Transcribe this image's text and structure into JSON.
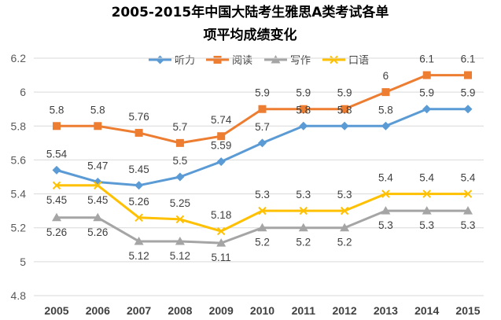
{
  "chart_data": {
    "type": "line",
    "title_lines": [
      "2005-2015年中国大陆考生雅思A类考试各单",
      "项平均成绩变化"
    ],
    "categories": [
      "2005",
      "2006",
      "2007",
      "2008",
      "2009",
      "2010",
      "2011",
      "2012",
      "2013",
      "2014",
      "2015"
    ],
    "ylim": [
      4.8,
      6.2
    ],
    "yticks": [
      "4.8",
      "5",
      "5.2",
      "5.4",
      "5.6",
      "5.8",
      "6",
      "6.2"
    ],
    "grid": true,
    "legend_position": "top",
    "series": [
      {
        "name": "听力",
        "color": "#5B9BD5",
        "marker": "diamond",
        "values": [
          5.54,
          5.47,
          5.45,
          5.5,
          5.59,
          5.7,
          5.8,
          5.8,
          5.8,
          5.9,
          5.9
        ],
        "labels": [
          "5.54",
          "5.47",
          "5.45",
          "5.5",
          "5.59",
          "5.7",
          "5.8",
          "5.8",
          "5.8",
          "5.9",
          "5.9"
        ],
        "label_side": [
          "above",
          "above",
          "above",
          "above",
          "above",
          "above",
          "above",
          "above",
          "above",
          "above",
          "above"
        ]
      },
      {
        "name": "阅读",
        "color": "#ED7D31",
        "marker": "square",
        "values": [
          5.8,
          5.8,
          5.76,
          5.7,
          5.74,
          5.9,
          5.9,
          5.9,
          6.0,
          6.1,
          6.1
        ],
        "labels": [
          "5.8",
          "5.8",
          "5.76",
          "5.7",
          "5.74",
          "5.9",
          "5.9",
          "5.9",
          "6",
          "6.1",
          "6.1"
        ],
        "label_side": [
          "above",
          "above",
          "above",
          "above",
          "above",
          "above",
          "above",
          "above",
          "above",
          "above",
          "above"
        ]
      },
      {
        "name": "写作",
        "color": "#A5A5A5",
        "marker": "triangle",
        "values": [
          5.26,
          5.26,
          5.12,
          5.12,
          5.11,
          5.2,
          5.2,
          5.2,
          5.3,
          5.3,
          5.3
        ],
        "labels": [
          "5.26",
          "5.26",
          "5.12",
          "5.12",
          "5.11",
          "5.2",
          "5.2",
          "5.2",
          "5.3",
          "5.3",
          "5.3"
        ],
        "label_side": [
          "below",
          "below",
          "below",
          "below",
          "below",
          "below",
          "below",
          "below",
          "below",
          "below",
          "below"
        ]
      },
      {
        "name": "口语",
        "color": "#FFC000",
        "marker": "x",
        "values": [
          5.45,
          5.45,
          5.26,
          5.25,
          5.18,
          5.3,
          5.3,
          5.3,
          5.4,
          5.4,
          5.4
        ],
        "labels": [
          "5.45",
          "5.45",
          "5.26",
          "5.25",
          "5.18",
          "5.3",
          "5.3",
          "5.3",
          "5.4",
          "5.4",
          "5.4"
        ],
        "label_side": [
          "below",
          "below",
          "above",
          "above",
          "above",
          "above",
          "above",
          "above",
          "above",
          "above",
          "above"
        ]
      }
    ]
  }
}
